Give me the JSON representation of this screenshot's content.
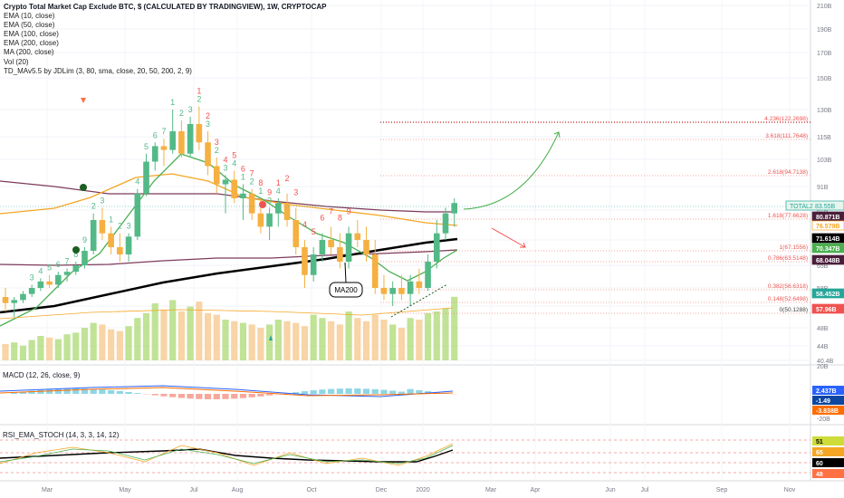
{
  "legend": {
    "title": "Crypto Total Market Cap Exclude BTC, $ (CALCULATED BY TRADINGVIEW), 1W, CRYPTOCAP",
    "indicators": [
      "EMA (10, close)",
      "EMA (50, close)",
      "EMA (100, close)",
      "EMA (200, close)",
      "MA (200, close)",
      "Vol (20)",
      "TD_MAv5.5 by JDLim (3, 80, sma, close, 20, 50, 200, 2, 9)"
    ]
  },
  "macd_label": "MACD (12, 26, close, 9)",
  "rsi_label": "RSI_EMA_STOCH (14, 3, 3, 14, 12)",
  "annotation": "MA200",
  "colors": {
    "up": "#53b987",
    "down": "#eb4d5c",
    "ema10": "#4caf50",
    "ema50": "#f5a623",
    "ema100": "#7e3b5a",
    "ma200": "#000000",
    "vol_up": "#b9e08a",
    "vol_down": "#f7cf9c",
    "fib": "#ef5350"
  },
  "chart_data": {
    "type": "candlestick",
    "price_axis": {
      "ticks": [
        "210B",
        "190B",
        "170B",
        "150B",
        "130B",
        "115B",
        "103B",
        "91B",
        "81B",
        "72B",
        "65B",
        "58B",
        "52B",
        "48B",
        "44B",
        "40.4B"
      ]
    },
    "time_axis": {
      "labels": [
        "Mar",
        "May",
        "Jul",
        "Aug",
        "Oct",
        "Dec",
        "2020",
        "Mar",
        "Apr",
        "Jun",
        "Jul",
        "Sep",
        "Nov"
      ]
    },
    "price_labels": [
      {
        "text": "TOTAL2",
        "value": "83.55B",
        "color": "#26a69a",
        "fill": "#e6f6ee"
      },
      {
        "text": "80.871B",
        "color": "#4a1f3b",
        "fill": "#4a1f3b"
      },
      {
        "text": "76.579B",
        "color": "#f5a623",
        "fill": "#ffffff"
      },
      {
        "text": "71.614B",
        "color": "#000000",
        "fill": "#000000"
      },
      {
        "text": "70.347B",
        "color": "#4caf50",
        "fill": "#4caf50"
      },
      {
        "text": "68.048B",
        "color": "#4a1f3b",
        "fill": "#4a1f3b"
      },
      {
        "text": "58.452B",
        "color": "#26a69a",
        "fill": "#26a69a"
      },
      {
        "text": "57.96B",
        "color": "#ef5350",
        "fill": "#ef5350"
      }
    ],
    "fib_levels": [
      "4.236(122.2698)",
      "3.618(111.7648)",
      "2.618(94.7138)",
      "1.618(77.6628)",
      "1(67.1556)",
      "0.786(63.5148)",
      "0.382(56.6318)",
      "0.148(52.6498)",
      "0(50.1288)"
    ],
    "ohlc": [
      [
        55,
        58,
        51,
        53
      ],
      [
        53,
        55,
        50,
        54
      ],
      [
        54,
        57,
        53,
        56
      ],
      [
        56,
        59,
        55,
        58
      ],
      [
        58,
        61,
        57,
        60
      ],
      [
        60,
        62,
        58,
        59
      ],
      [
        59,
        63,
        58,
        62
      ],
      [
        62,
        64,
        60,
        63
      ],
      [
        63,
        66,
        62,
        65
      ],
      [
        65,
        70,
        64,
        69
      ],
      [
        69,
        80,
        68,
        78
      ],
      [
        78,
        82,
        72,
        74
      ],
      [
        74,
        76,
        68,
        70
      ],
      [
        70,
        74,
        66,
        68
      ],
      [
        68,
        74,
        66,
        73
      ],
      [
        73,
        90,
        72,
        88
      ],
      [
        88,
        106,
        87,
        102
      ],
      [
        102,
        112,
        98,
        110
      ],
      [
        110,
        114,
        100,
        108
      ],
      [
        108,
        130,
        106,
        118
      ],
      [
        118,
        124,
        104,
        106
      ],
      [
        106,
        126,
        104,
        122
      ],
      [
        122,
        132,
        108,
        112
      ],
      [
        112,
        118,
        96,
        100
      ],
      [
        100,
        104,
        88,
        92
      ],
      [
        92,
        96,
        80,
        94
      ],
      [
        94,
        98,
        84,
        86
      ],
      [
        86,
        92,
        78,
        88
      ],
      [
        88,
        90,
        78,
        80
      ],
      [
        80,
        86,
        74,
        76
      ],
      [
        76,
        82,
        72,
        80
      ],
      [
        80,
        86,
        76,
        84
      ],
      [
        84,
        88,
        76,
        78
      ],
      [
        78,
        82,
        68,
        70
      ],
      [
        70,
        72,
        58,
        62
      ],
      [
        62,
        70,
        60,
        68
      ],
      [
        68,
        74,
        66,
        72
      ],
      [
        72,
        76,
        68,
        70
      ],
      [
        70,
        74,
        64,
        66
      ],
      [
        66,
        76,
        64,
        74
      ],
      [
        74,
        78,
        70,
        72
      ],
      [
        72,
        76,
        66,
        68
      ],
      [
        68,
        72,
        56,
        58
      ],
      [
        58,
        62,
        54,
        56
      ],
      [
        56,
        60,
        52,
        58
      ],
      [
        58,
        62,
        54,
        56
      ],
      [
        56,
        62,
        52,
        60
      ],
      [
        60,
        64,
        56,
        58
      ],
      [
        58,
        68,
        57,
        66
      ],
      [
        66,
        78,
        64,
        74
      ],
      [
        74,
        82,
        72,
        80
      ],
      [
        80,
        86,
        76,
        84
      ]
    ],
    "td_up_counts": [
      3,
      4,
      5,
      6,
      7,
      8,
      "9",
      2,
      3,
      1,
      2,
      3,
      4,
      5,
      6,
      7,
      1,
      2,
      3,
      2,
      3,
      2,
      3,
      4,
      1,
      2,
      1,
      3,
      4
    ],
    "td_down_counts": [
      1,
      2,
      3,
      4,
      5,
      6,
      7,
      8,
      9,
      1,
      2,
      3,
      4,
      5,
      6,
      7,
      8,
      9
    ]
  }
}
